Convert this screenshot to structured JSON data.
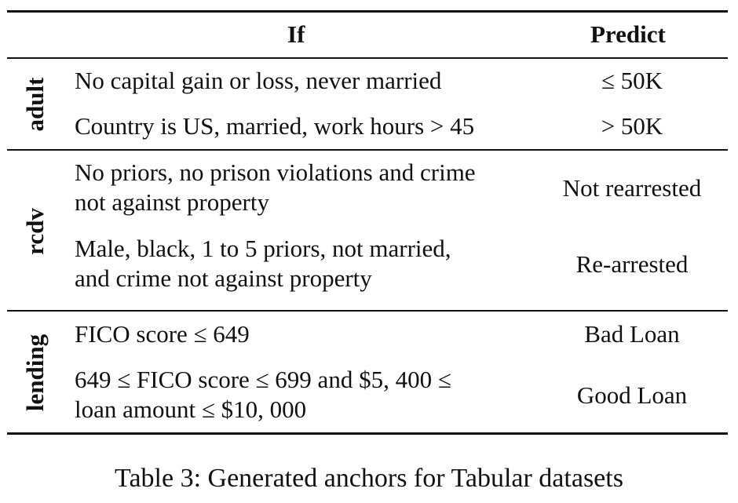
{
  "table": {
    "headers": {
      "if": "If",
      "predict": "Predict"
    },
    "groups": [
      {
        "label": "adult",
        "rows": [
          {
            "condition": [
              "No capital gain or loss, never married"
            ],
            "prediction": "≤ 50K"
          },
          {
            "condition": [
              "Country is US, married, work hours > 45"
            ],
            "prediction": "> 50K"
          }
        ]
      },
      {
        "label": "rcdv",
        "rows": [
          {
            "condition": [
              "No priors, no prison violations and crime",
              "not against property"
            ],
            "prediction": "Not rearrested"
          },
          {
            "condition": [
              "Male, black, 1 to 5 priors, not married,",
              "and crime not against property"
            ],
            "prediction": "Re-arrested"
          }
        ]
      },
      {
        "label": "lending",
        "rows": [
          {
            "condition": [
              "FICO score ≤ 649"
            ],
            "prediction": "Bad Loan"
          },
          {
            "condition": [
              "649 ≤ FICO score ≤ 699 and $5, 400 ≤",
              "loan amount ≤ $10, 000"
            ],
            "prediction": "Good Loan"
          }
        ]
      }
    ]
  },
  "caption": "Table 3: Generated anchors for Tabular datasets"
}
